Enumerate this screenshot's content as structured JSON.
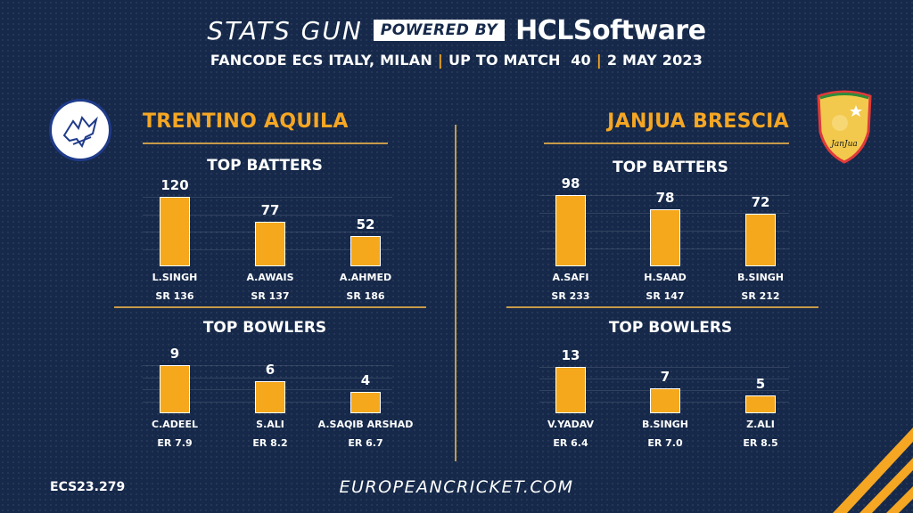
{
  "header": {
    "stats_label": "STATS GUN",
    "powered_label": "POWERED BY",
    "sponsor_label": "HCLSoftware",
    "subtitle_parts": [
      "FANCODE ECS ITALY, MILAN",
      "UP TO MATCH  40",
      "2 MAY 2023"
    ]
  },
  "footer": {
    "code": "ECS23.279",
    "site": "EUROPEANCRICKET.COM"
  },
  "colors": {
    "background": "#16294a",
    "accent": "#f5a623",
    "bar": "#f5a81c",
    "divider": "#c79a4a"
  },
  "chart_data": [
    {
      "type": "bar",
      "team": "TRENTINO AQUILA",
      "title": "TOP BATTERS",
      "categories": [
        "L.SINGH",
        "A.AWAIS",
        "A.AHMED"
      ],
      "values": [
        120,
        77,
        52
      ],
      "sublabels": [
        "SR 136",
        "SR 137",
        "SR 186"
      ]
    },
    {
      "type": "bar",
      "team": "TRENTINO AQUILA",
      "title": "TOP BOWLERS",
      "categories": [
        "C.ADEEL",
        "S.ALI",
        "A.SAQIB ARSHAD"
      ],
      "values": [
        9,
        6,
        4
      ],
      "sublabels": [
        "ER 7.9",
        "ER 8.2",
        "ER 6.7"
      ]
    },
    {
      "type": "bar",
      "team": "JANJUA BRESCIA",
      "title": "TOP BATTERS",
      "categories": [
        "A.SAFI",
        "H.SAAD",
        "B.SINGH"
      ],
      "values": [
        98,
        78,
        72
      ],
      "sublabels": [
        "SR 233",
        "SR 147",
        "SR 212"
      ]
    },
    {
      "type": "bar",
      "team": "JANJUA BRESCIA",
      "title": "TOP BOWLERS",
      "categories": [
        "V.YADAV",
        "B.SINGH",
        "Z.ALI"
      ],
      "values": [
        13,
        7,
        5
      ],
      "sublabels": [
        "ER 6.4",
        "ER 7.0",
        "ER 8.5"
      ]
    }
  ],
  "teams": {
    "left": {
      "name": "TRENTINO AQUILA",
      "logo_icon": "eagle-logo-icon"
    },
    "right": {
      "name": "JANJUA BRESCIA",
      "logo_icon": "janjua-brescia-shield-icon",
      "logo_text": "JanJua"
    }
  }
}
